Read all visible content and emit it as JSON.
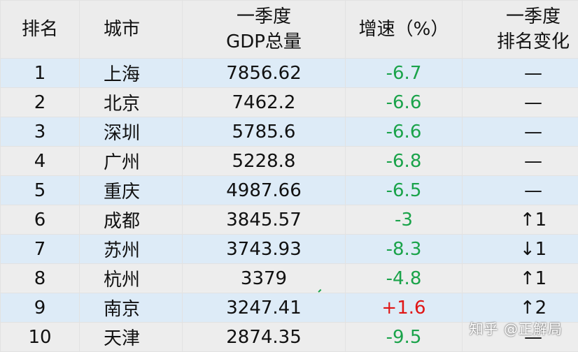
{
  "headers": {
    "rank": "排名",
    "city": "城市",
    "gdp_line1": "一季度",
    "gdp_line2": "GDP总量",
    "growth": "增速（%）",
    "change_line1": "一季度",
    "change_line2": "排名变化"
  },
  "rows": [
    {
      "rank": "1",
      "city": "上海",
      "gdp": "7856.62",
      "growth": "-6.7",
      "change": "—"
    },
    {
      "rank": "2",
      "city": "北京",
      "gdp": "7462.2",
      "growth": "-6.6",
      "change": "—"
    },
    {
      "rank": "3",
      "city": "深圳",
      "gdp": "5785.6",
      "growth": "-6.6",
      "change": "—"
    },
    {
      "rank": "4",
      "city": "广州",
      "gdp": "5228.8",
      "growth": "-6.8",
      "change": "—"
    },
    {
      "rank": "5",
      "city": "重庆",
      "gdp": "4987.66",
      "growth": "-6.5",
      "change": "—"
    },
    {
      "rank": "6",
      "city": "成都",
      "gdp": "3845.57",
      "growth": "-3",
      "change": "↑1"
    },
    {
      "rank": "7",
      "city": "苏州",
      "gdp": "3743.93",
      "growth": "-8.3",
      "change": "↓1"
    },
    {
      "rank": "8",
      "city": "杭州",
      "gdp": "3379",
      "growth": "-4.8",
      "change": "↑1"
    },
    {
      "rank": "9",
      "city": "南京",
      "gdp": "3247.41",
      "growth": "+1.6",
      "change": "↑2"
    },
    {
      "rank": "10",
      "city": "天津",
      "gdp": "2874.35",
      "growth": "-9.5",
      "change": "—"
    }
  ],
  "colors": {
    "negative_growth": "#1aa34a",
    "positive_growth": "#e01515",
    "rank_up": "#e01515",
    "rank_down": "#1aa34a",
    "row_blue": "#ddebf7",
    "row_gray": "#ededed"
  },
  "watermark": "知乎 @正解局"
}
